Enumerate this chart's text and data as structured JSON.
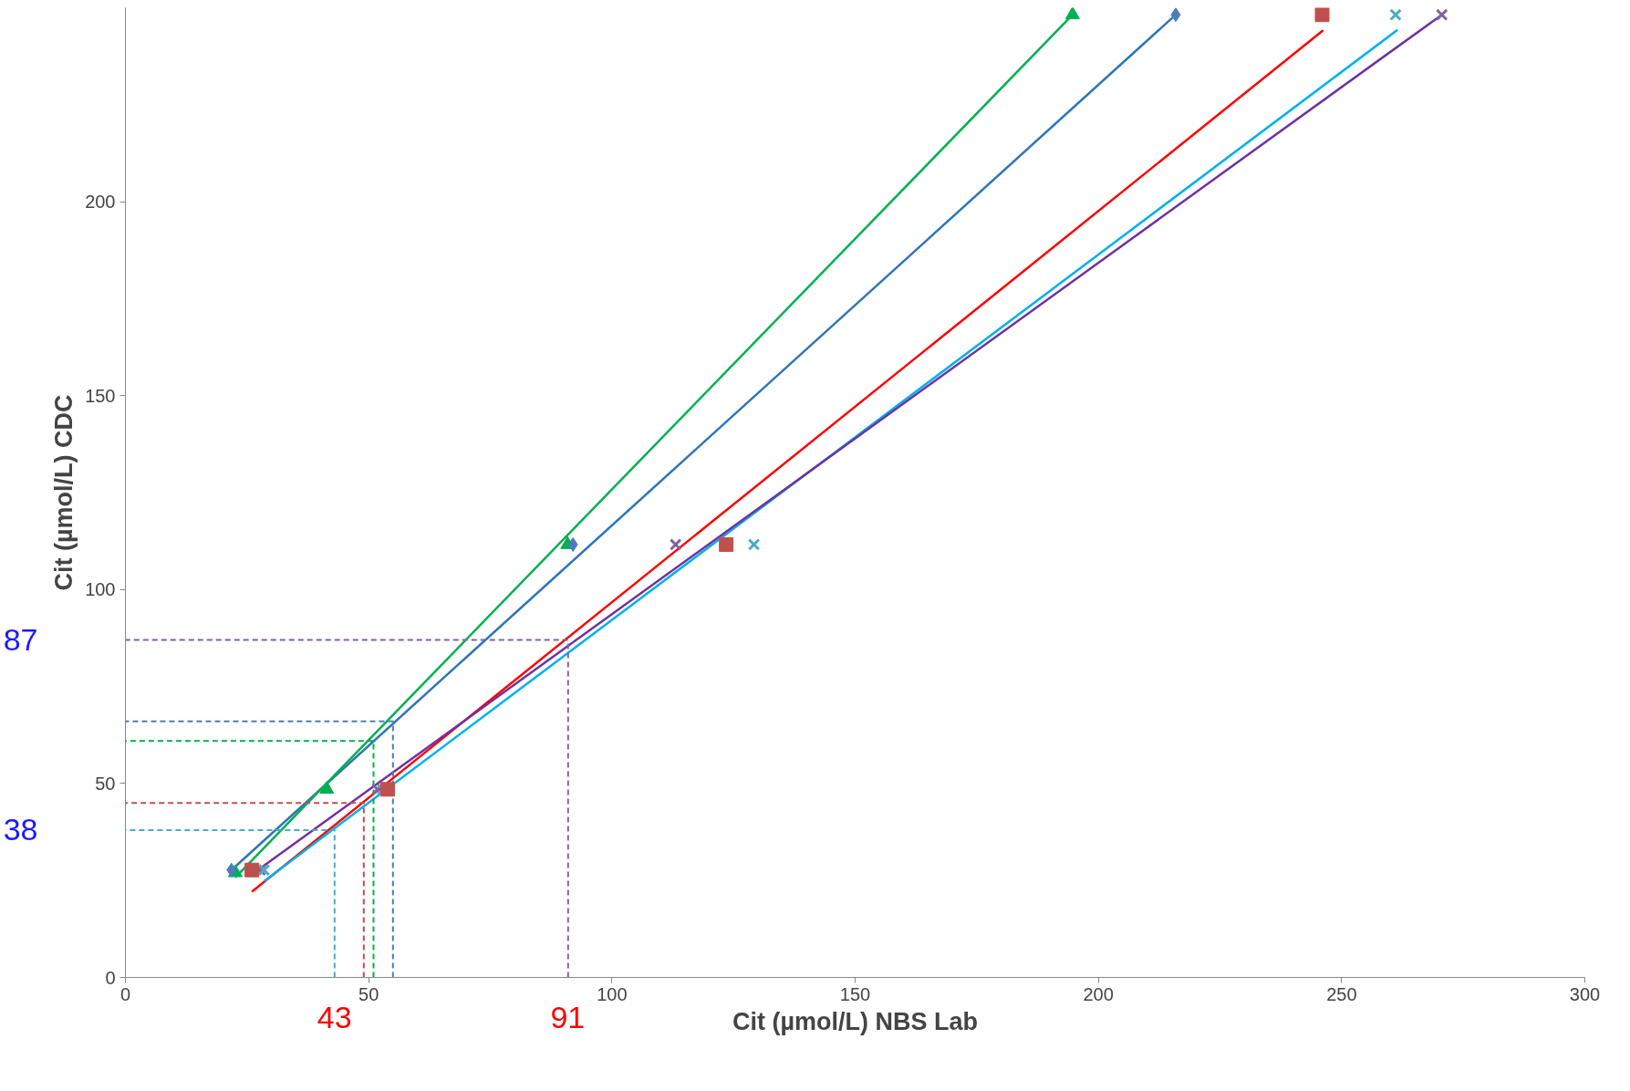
{
  "chart_data": {
    "type": "scatter",
    "xlabel": "Cit (µmol/L) NBS Lab",
    "ylabel": "Cit (µmol/L) CDC",
    "xlim": [
      0,
      300
    ],
    "ylim": [
      0,
      250
    ],
    "xticks": [
      0,
      50,
      100,
      150,
      200,
      250,
      300
    ],
    "yticks": [
      0,
      50,
      100,
      150,
      200
    ],
    "grid": false,
    "series": [
      {
        "type": "scatter",
        "marker": "diamond",
        "color": "#4a7ebb",
        "x": [
          21.8,
          92,
          215.9
        ],
        "values": [
          27.7,
          111.6,
          248.2
        ]
      },
      {
        "type": "scatter",
        "marker": "triangle",
        "color": "#00b050",
        "x": [
          22.6,
          41.4,
          90.9,
          194.7
        ],
        "values": [
          27.0,
          48.5,
          111.6,
          248.2
        ]
      },
      {
        "type": "scatter",
        "marker": "square",
        "color": "#c0504d",
        "x": [
          26,
          53.9,
          123.5,
          246
        ],
        "values": [
          27.7,
          48.5,
          111.6,
          248.2
        ]
      },
      {
        "type": "scatter",
        "marker": "cross",
        "color": "#4bacc6",
        "x": [
          28.5,
          52.9,
          129.2,
          261.1
        ],
        "values": [
          27.7,
          48.5,
          111.6,
          248.2
        ]
      },
      {
        "type": "scatter",
        "marker": "cross",
        "color": "#8064a2",
        "x": [
          27.7,
          51.8,
          113.1,
          270.6
        ],
        "values": [
          27.7,
          48.5,
          111.6,
          248.2
        ]
      },
      {
        "type": "line",
        "line_style": "solid",
        "color": "#2e75b6",
        "x": [
          21.8,
          215.9
        ],
        "values": [
          27.7,
          248.2
        ]
      },
      {
        "type": "line",
        "line_style": "solid",
        "color": "#00b050",
        "x": [
          22.6,
          194.7
        ],
        "values": [
          25.8,
          248.2
        ]
      },
      {
        "type": "line",
        "line_style": "solid",
        "color": "#ff0000",
        "x": [
          26,
          246.2
        ],
        "values": [
          22.1,
          244.2
        ]
      },
      {
        "type": "line",
        "line_style": "solid",
        "color": "#00b0f0",
        "x": [
          28.5,
          261.5
        ],
        "values": [
          24.8,
          244.3
        ]
      },
      {
        "type": "line",
        "line_style": "solid",
        "color": "#7030a0",
        "x": [
          26,
          270.6
        ],
        "values": [
          26.6,
          248.2
        ]
      },
      {
        "type": "line",
        "line_style": "dashed",
        "color": "#8064a2",
        "x": [
          91,
          91,
          0
        ],
        "values": [
          0,
          87,
          87
        ]
      },
      {
        "type": "line",
        "line_style": "dashed",
        "color": "#4a7ebb",
        "x": [
          55,
          55,
          0
        ],
        "values": [
          0,
          66,
          66
        ]
      },
      {
        "type": "line",
        "line_style": "dashed",
        "color": "#00b050",
        "x": [
          51,
          51,
          0
        ],
        "values": [
          0,
          61,
          61
        ]
      },
      {
        "type": "line",
        "line_style": "dashed",
        "color": "#c0504d",
        "x": [
          49,
          49,
          0
        ],
        "values": [
          0,
          45,
          45
        ]
      },
      {
        "type": "line",
        "line_style": "dashed",
        "color": "#4bacc6",
        "x": [
          43,
          43,
          0
        ],
        "values": [
          0,
          38,
          38
        ]
      }
    ],
    "annotations": [
      "87",
      "38",
      "43",
      "91"
    ]
  }
}
